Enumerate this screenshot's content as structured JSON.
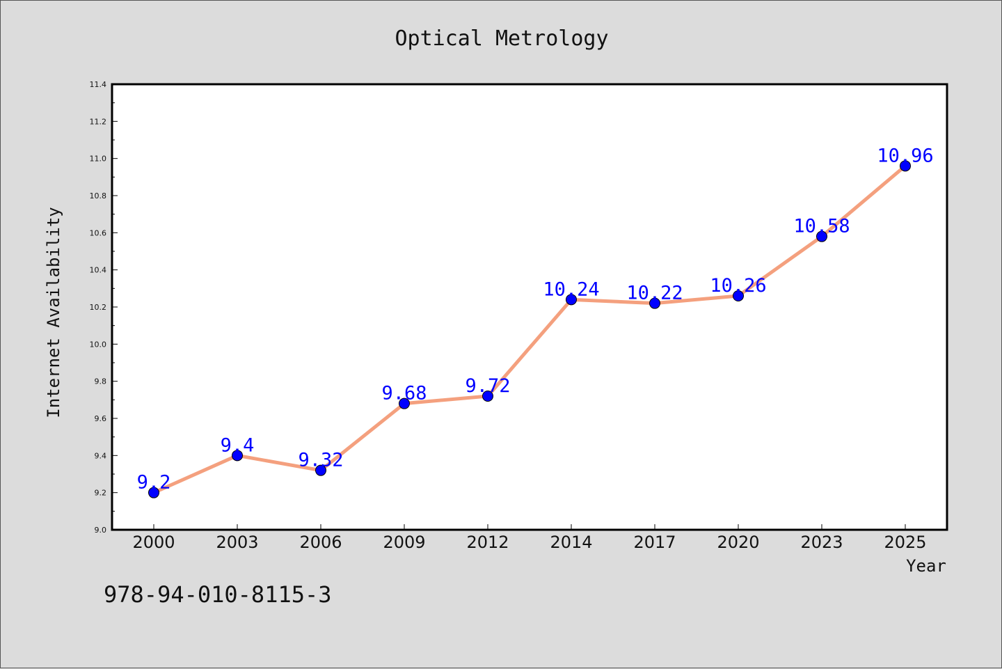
{
  "chart_data": {
    "type": "line",
    "title": "Optical Metrology",
    "xlabel": "Year",
    "ylabel": "Internet Availability",
    "categories": [
      "2000",
      "2003",
      "2006",
      "2009",
      "2012",
      "2014",
      "2017",
      "2020",
      "2023",
      "2025"
    ],
    "series": [
      {
        "values": [
          9.2,
          9.4,
          9.32,
          9.68,
          9.72,
          10.24,
          10.22,
          10.26,
          10.58,
          10.96
        ]
      }
    ],
    "data_labels": [
      "9.2",
      "9.4",
      "9.32",
      "9.68",
      "9.72",
      "10.24",
      "10.22",
      "10.26",
      "10.58",
      "10.96"
    ],
    "ylim": [
      9.0,
      11.4
    ],
    "yticks": [
      "9.0",
      "9.2",
      "9.4",
      "9.6",
      "9.8",
      "10.0",
      "10.2",
      "10.4",
      "10.6",
      "10.8",
      "11.0",
      "11.2",
      "11.4"
    ],
    "grid": false,
    "line_color": "#f4a07e",
    "marker_color": "#0000ff",
    "label_color": "#0000ff"
  },
  "footer": {
    "isbn": "978-94-010-8115-3"
  }
}
